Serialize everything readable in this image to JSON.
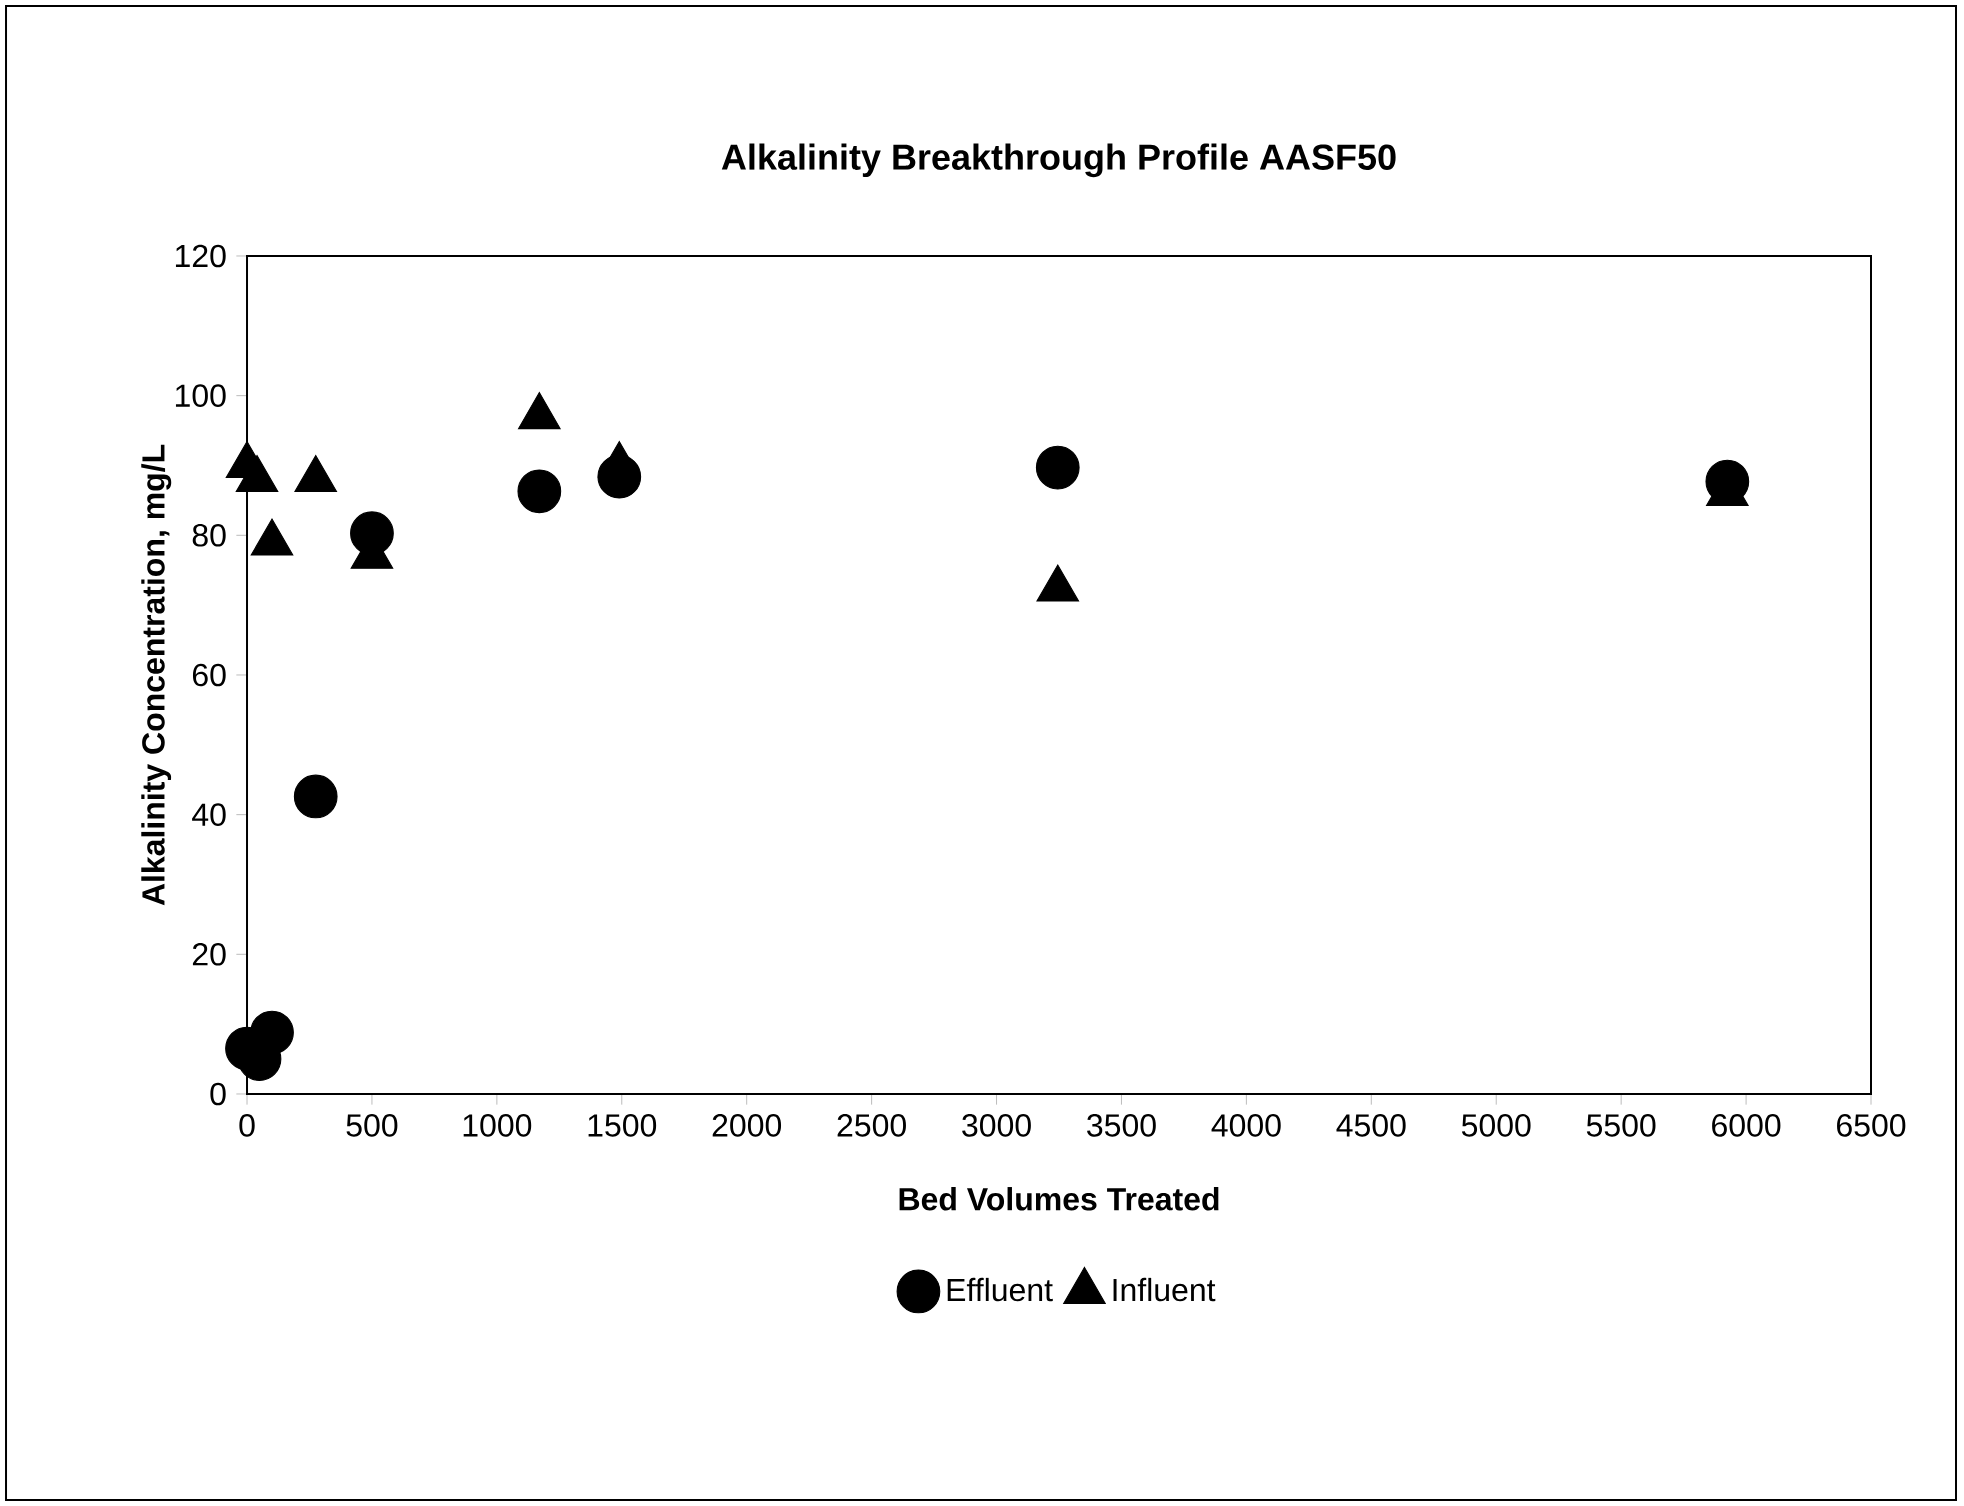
{
  "chart_data": {
    "type": "scatter",
    "title": "Alkalinity Breakthrough Profile AASF50",
    "xlabel": "Bed Volumes Treated",
    "ylabel": "Alkalinity Concentration, mg/L",
    "xlim": [
      0,
      6500
    ],
    "xticks": [
      0,
      500,
      1000,
      1500,
      2000,
      2500,
      3000,
      3500,
      4000,
      4500,
      5000,
      5500,
      6000,
      6500
    ],
    "ylim": [
      0,
      120
    ],
    "yticks": [
      0,
      20,
      40,
      60,
      80,
      100,
      120
    ],
    "grid": false,
    "legend": "bottom",
    "series": [
      {
        "name": "Effluent",
        "color": "#000000",
        "marker": "circle",
        "x": [
          0,
          50,
          100,
          275,
          500,
          1170,
          1490,
          3245,
          5925
        ],
        "values": [
          6.5,
          5,
          8.8,
          42.6,
          80.3,
          86.3,
          88.4,
          89.7,
          87.7
        ]
      },
      {
        "name": "Influent",
        "color": "#000000",
        "marker": "triangle",
        "x": [
          0,
          40,
          100,
          275,
          500,
          1170,
          1490,
          3245,
          5925
        ],
        "values": [
          90,
          88,
          78.9,
          88,
          77,
          97,
          90,
          72.3,
          86
        ]
      }
    ]
  }
}
